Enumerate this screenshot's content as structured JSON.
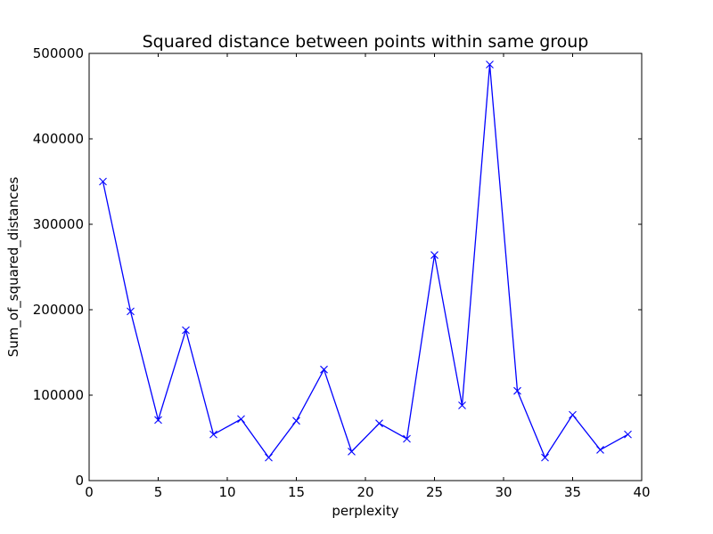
{
  "chart_data": {
    "type": "line",
    "title": "Squared distance between points within same group",
    "xlabel": "perplexity",
    "ylabel": "Sum_of_squared_distances",
    "xlim": [
      0,
      40
    ],
    "ylim": [
      0,
      500000
    ],
    "xticks": [
      0,
      5,
      10,
      15,
      20,
      25,
      30,
      35,
      40
    ],
    "yticks": [
      0,
      100000,
      200000,
      300000,
      400000,
      500000
    ],
    "grid": false,
    "marker": "x",
    "colors": {
      "line": "#0000ff"
    },
    "series": [
      {
        "x": [
          1,
          3,
          5,
          7,
          9,
          11,
          13,
          15,
          17,
          19,
          21,
          23,
          25,
          27,
          29,
          31,
          33,
          35,
          37,
          39
        ],
        "values": [
          350000,
          198000,
          71000,
          176000,
          54000,
          72000,
          27000,
          70000,
          130000,
          34000,
          67000,
          49000,
          264000,
          88000,
          487000,
          105000,
          27000,
          77000,
          36000,
          54000
        ]
      }
    ]
  }
}
